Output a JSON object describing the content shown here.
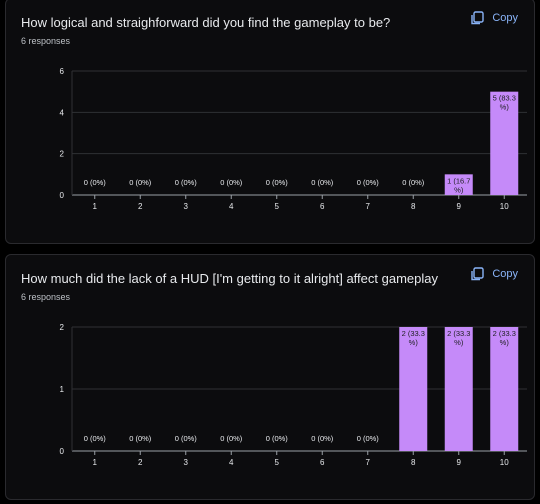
{
  "copy_label": "Copy",
  "charts": [
    {
      "title": "How logical and straighforward did you find the gameplay to be?",
      "responses": "6 responses",
      "chart_data": {
        "type": "bar",
        "categories": [
          "1",
          "2",
          "3",
          "4",
          "5",
          "6",
          "7",
          "8",
          "9",
          "10"
        ],
        "values": [
          0,
          0,
          0,
          0,
          0,
          0,
          0,
          0,
          1,
          5
        ],
        "labels": [
          "0 (0%)",
          "0 (0%)",
          "0 (0%)",
          "0 (0%)",
          "0 (0%)",
          "0 (0%)",
          "0 (0%)",
          "0 (0%)",
          "1 (16.7%)",
          "5 (83.3%)"
        ],
        "ylim": [
          0,
          6
        ],
        "yticks": [
          0,
          2,
          4,
          6
        ]
      }
    },
    {
      "title": "How much did the lack of a HUD [I'm getting to it alright] affect gameplay",
      "responses": "6 responses",
      "chart_data": {
        "type": "bar",
        "categories": [
          "1",
          "2",
          "3",
          "4",
          "5",
          "6",
          "7",
          "8",
          "9",
          "10"
        ],
        "values": [
          0,
          0,
          0,
          0,
          0,
          0,
          0,
          2,
          2,
          2
        ],
        "labels": [
          "0 (0%)",
          "0 (0%)",
          "0 (0%)",
          "0 (0%)",
          "0 (0%)",
          "0 (0%)",
          "0 (0%)",
          "2 (33.3%)",
          "2 (33.3%)",
          "2 (33.3%)"
        ],
        "ylim": [
          0,
          2
        ],
        "yticks": [
          0,
          1,
          2
        ]
      }
    }
  ]
}
